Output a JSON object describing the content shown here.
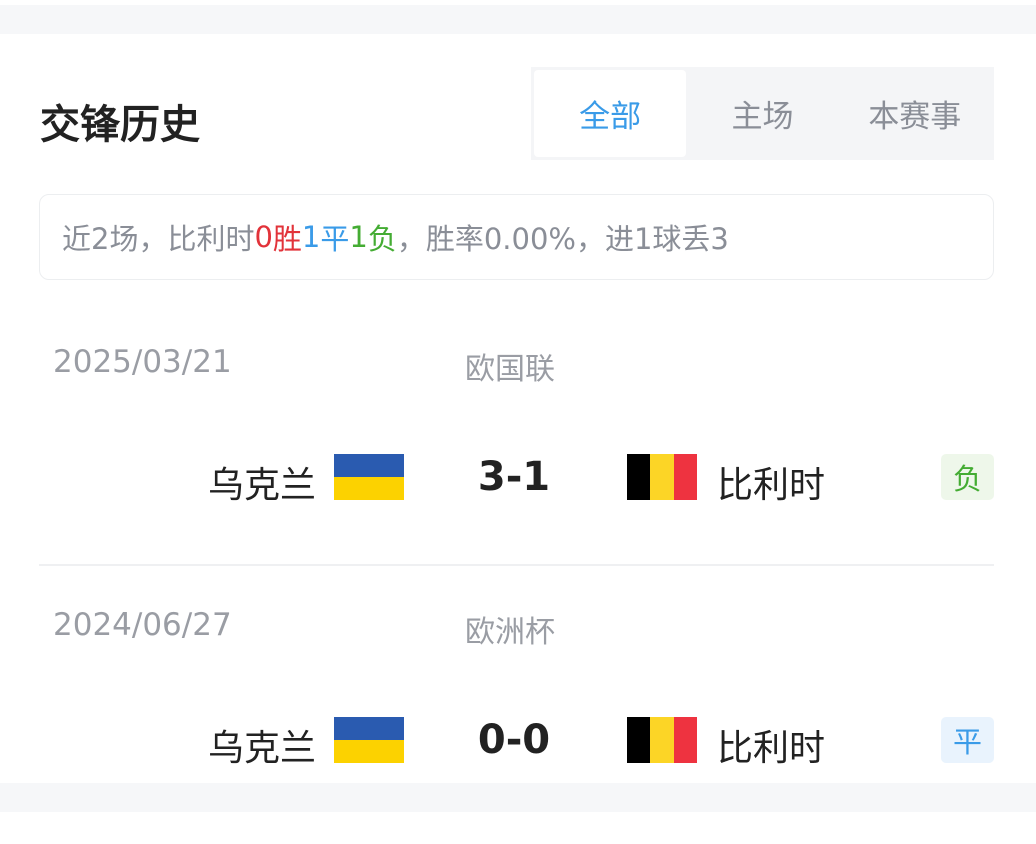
{
  "header": {
    "title": "交锋历史",
    "tabs": [
      {
        "label": "全部",
        "active": true
      },
      {
        "label": "主场",
        "active": false
      },
      {
        "label": "本赛事",
        "active": false
      }
    ]
  },
  "summary": {
    "prefix": "近2场，比利时",
    "wins": "0",
    "wins_label": "胜",
    "draws": "1",
    "draws_label": "平",
    "losses": "1",
    "losses_label": "负",
    "suffix": "，胜率0.00%，进1球丢3"
  },
  "colors": {
    "accent": "#3a9be8",
    "win": "#e2333a",
    "draw": "#3a9be8",
    "loss": "#44ac33"
  },
  "matches": [
    {
      "date": "2025/03/21",
      "competition": "欧国联",
      "home": "乌克兰",
      "score": "3-1",
      "away": "比利时",
      "result": "负",
      "home_flag": "ukraine-flag",
      "away_flag": "belgium-flag"
    },
    {
      "date": "2024/06/27",
      "competition": "欧洲杯",
      "home": "乌克兰",
      "score": "0-0",
      "away": "比利时",
      "result": "平",
      "home_flag": "ukraine-flag",
      "away_flag": "belgium-flag"
    }
  ]
}
